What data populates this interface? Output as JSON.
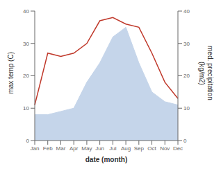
{
  "chart_data": {
    "type": "line",
    "xlabel": "date (month)",
    "ylabel": "max temp (C)",
    "y2label": "med. precipitation\n(kg/m2)",
    "categories": [
      "Jan",
      "Feb",
      "Mar",
      "Apr",
      "May",
      "Jun",
      "Jul",
      "Aug",
      "Sep",
      "Oct",
      "Nov",
      "Dec"
    ],
    "series": [
      {
        "type": "area",
        "color": "#c5d5ea",
        "values": [
          8,
          8,
          9,
          10,
          18,
          24,
          32,
          35,
          24,
          15,
          12,
          11
        ]
      },
      {
        "type": "line",
        "color": "#c0392b",
        "values": [
          11,
          27,
          26,
          27,
          30,
          37,
          38,
          36,
          35,
          27,
          18,
          13
        ]
      }
    ],
    "ylim": [
      0,
      40
    ],
    "yticks": [
      0,
      10,
      20,
      30,
      40
    ],
    "y2lim": [
      0,
      40
    ],
    "y2ticks": [
      0,
      10,
      20,
      30,
      40
    ],
    "grid": false
  }
}
